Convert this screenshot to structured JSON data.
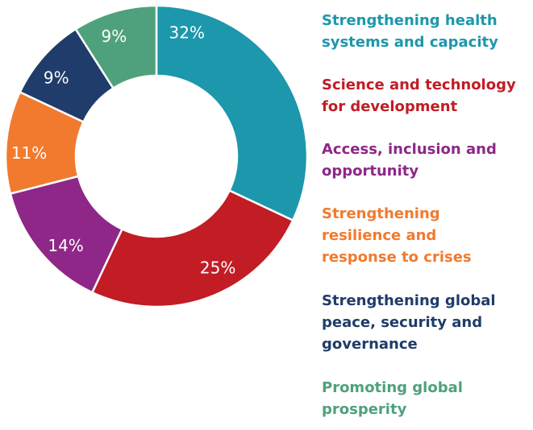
{
  "chart_data": {
    "type": "pie",
    "donut": true,
    "start": "top, clockwise",
    "categories": [
      "Strengthening health systems and capacity",
      "Science and technology for development",
      "Access, inclusion and opportunity",
      "Strengthening resilience and response to crises",
      "Strengthening global peace,  security and governance",
      "Promoting global prosperity"
    ],
    "values": [
      32,
      25,
      14,
      11,
      9,
      9
    ],
    "value_labels": [
      "32%",
      "25%",
      "14%",
      "11%",
      "9%",
      "9%"
    ],
    "colors": [
      "#1d97ab",
      "#c21c25",
      "#8e2787",
      "#f27a2e",
      "#1f3c6a",
      "#4ea17c"
    ],
    "legend_position": "right",
    "legend": [
      {
        "text": "Strengthening health\nsystems and capacity",
        "color": "#1d97ab"
      },
      {
        "text": "Science and technology\nfor development",
        "color": "#c21c25"
      },
      {
        "text": "Access, inclusion and\nopportunity",
        "color": "#8e2787"
      },
      {
        "text": "Strengthening\nresilience and\nresponse to crises",
        "color": "#f27a2e"
      },
      {
        "text": "Strengthening global\npeace,  security and\ngovernance",
        "color": "#1f3c6a"
      },
      {
        "text": "Promoting global\nprosperity",
        "color": "#4ea17c"
      }
    ]
  }
}
